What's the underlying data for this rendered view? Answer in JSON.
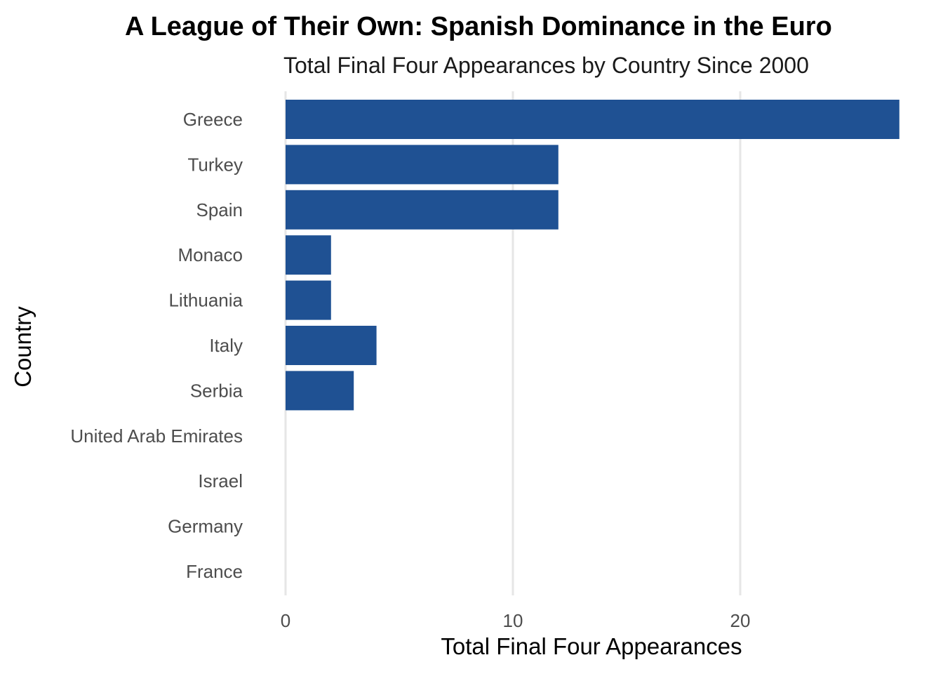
{
  "chart_data": {
    "type": "bar",
    "orientation": "horizontal",
    "title": "A League of Their Own: Spanish Dominance in the Euro",
    "subtitle": "Total Final Four Appearances by Country Since 2000",
    "xlabel": "Total Final Four Appearances",
    "ylabel": "Country",
    "categories": [
      "Greece",
      "Turkey",
      "Spain",
      "Monaco",
      "Lithuania",
      "Italy",
      "Serbia",
      "United Arab Emirates",
      "Israel",
      "Germany",
      "France"
    ],
    "values": [
      27,
      12,
      12,
      2,
      2,
      4,
      3,
      0,
      0,
      0,
      0
    ],
    "xlim": [
      0,
      27
    ],
    "xticks": [
      0,
      10,
      20
    ],
    "xtick_labels": [
      "0",
      "10",
      "20"
    ],
    "grid": "vertical major gridlines",
    "legend": "none",
    "colors": {
      "bar": "#1f5193",
      "grid": "#e6e6e6",
      "background": "#ffffff"
    }
  }
}
